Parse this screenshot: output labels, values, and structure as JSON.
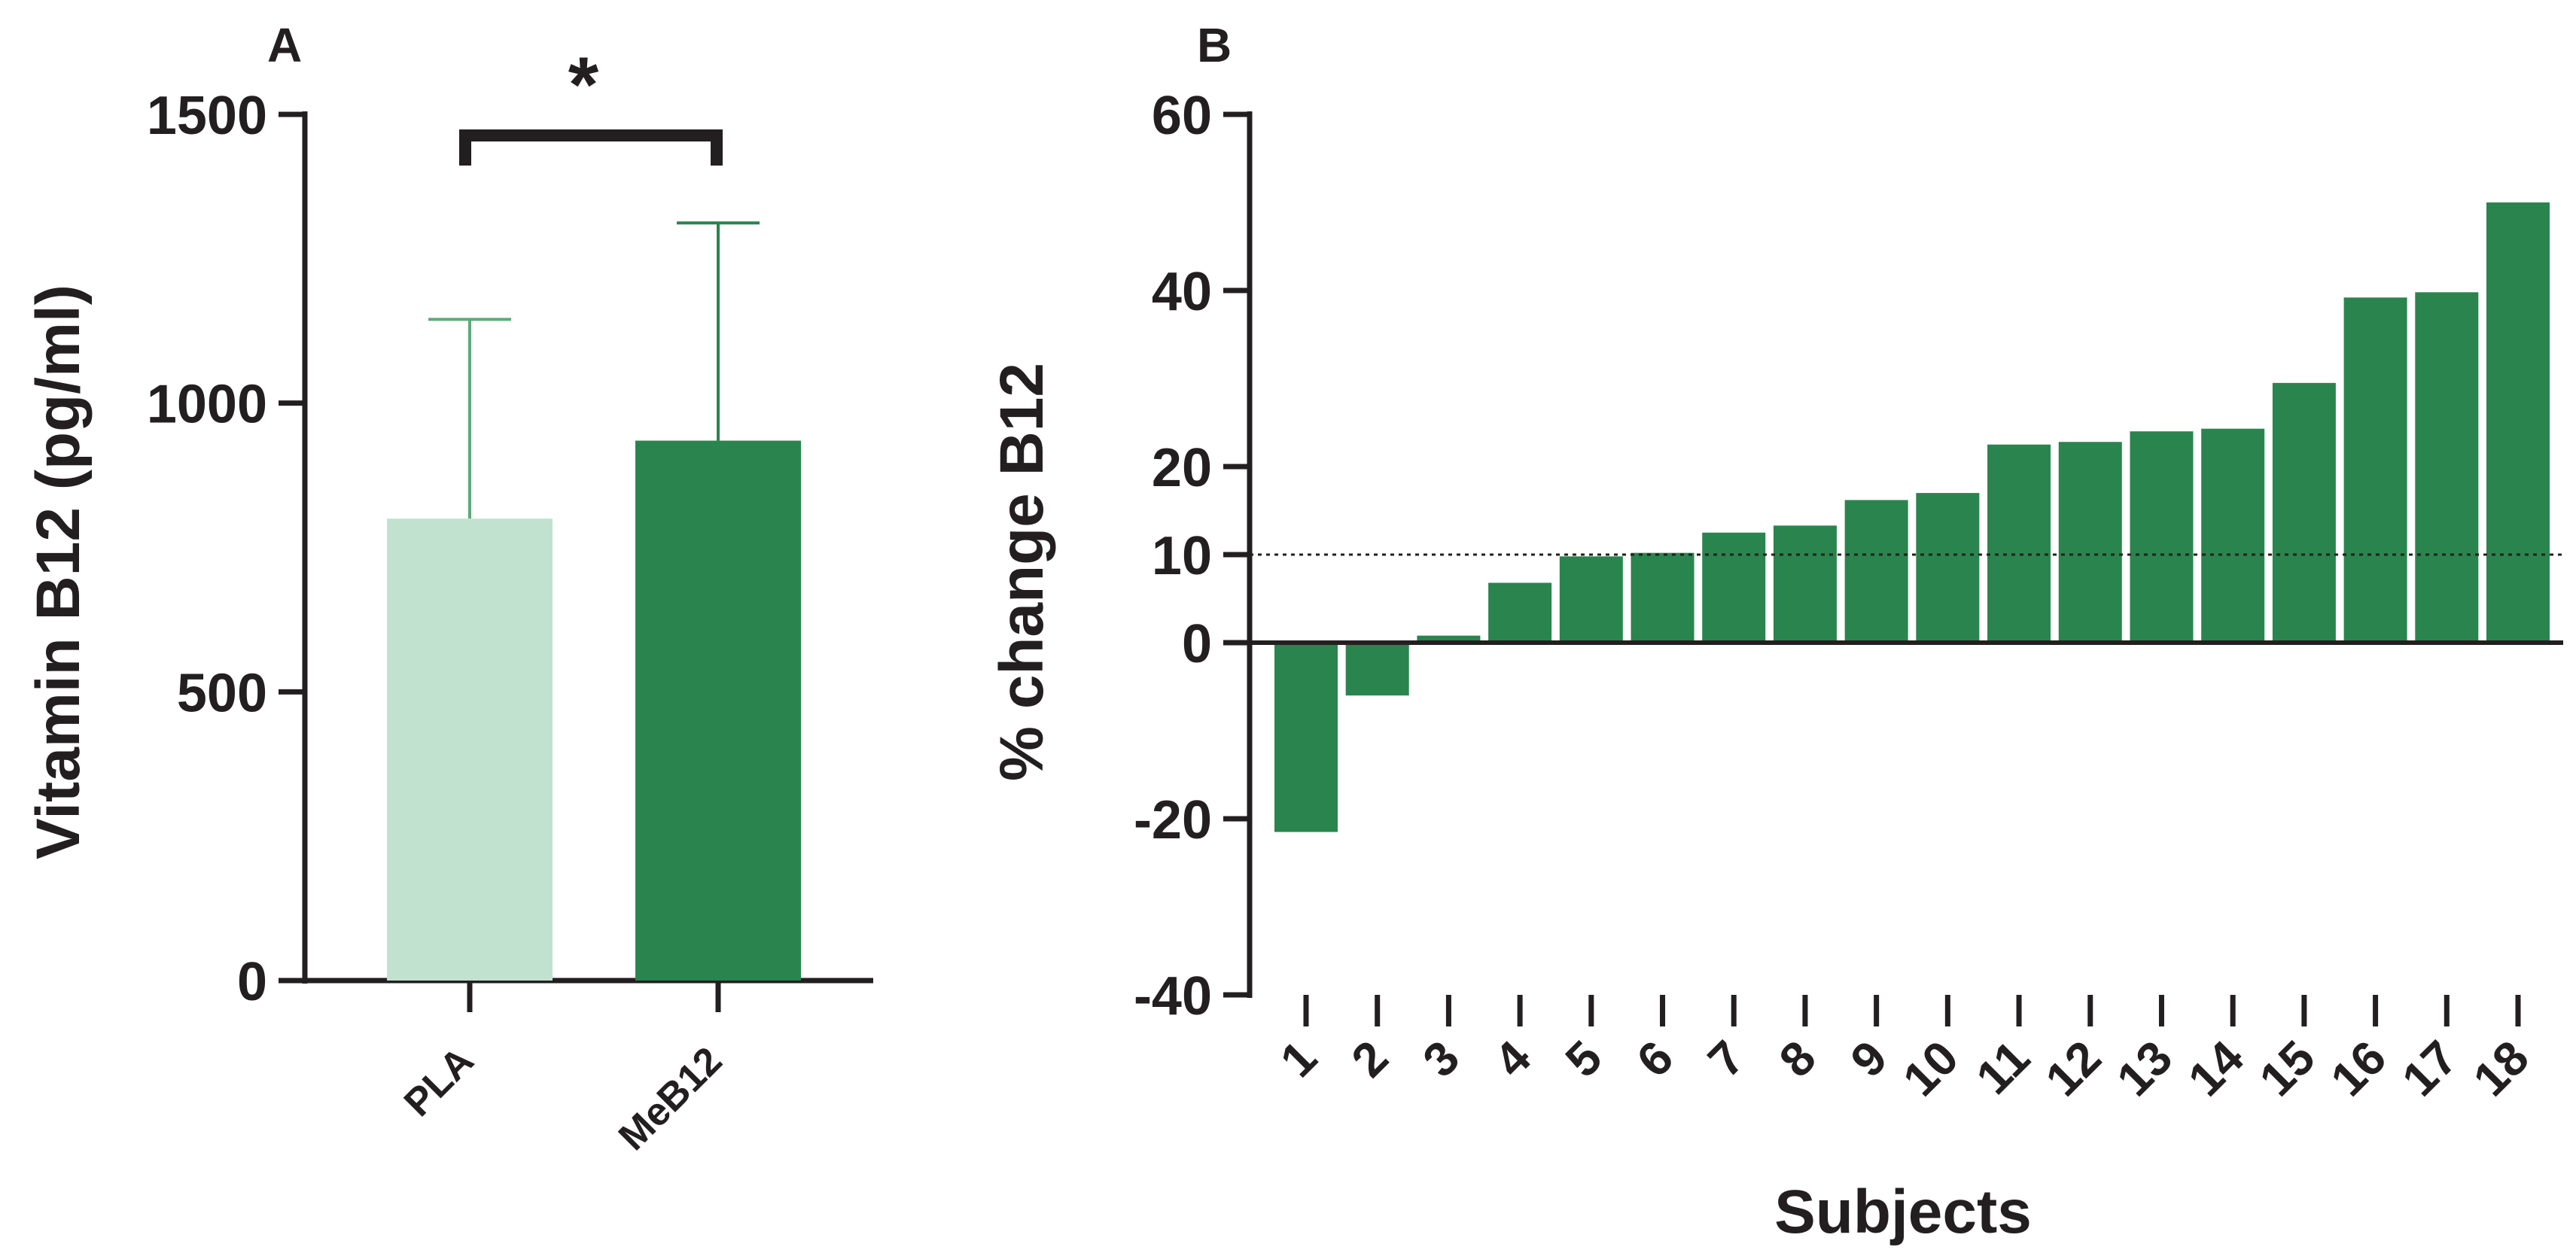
{
  "colors": {
    "axis": "#231f20",
    "pla_bar": "#c2e2d0",
    "meb12_bar": "#2a844e",
    "error_bar_pla": "#5aab7a",
    "error_bar_meb12": "#2a844e",
    "subject_bar": "#2a844e",
    "reference_line": "#231f20"
  },
  "chart_data": [
    {
      "panel": "A",
      "type": "bar",
      "categories": [
        "PLA",
        "MeB12"
      ],
      "values": [
        800,
        935
      ],
      "error_upper": [
        1145,
        1312
      ],
      "ylabel": "Vitamin B12 (pg/ml)",
      "ylim": [
        0,
        1500
      ],
      "yticks": [
        "0",
        "500",
        "1000",
        "1500"
      ],
      "significance": "*",
      "grid": false
    },
    {
      "panel": "B",
      "type": "bar",
      "categories": [
        "1",
        "2",
        "3",
        "4",
        "5",
        "6",
        "7",
        "8",
        "9",
        "10",
        "11",
        "12",
        "13",
        "14",
        "15",
        "16",
        "17",
        "18"
      ],
      "values": [
        -21.5,
        -6,
        0.8,
        6.8,
        9.8,
        10.2,
        12.5,
        13.3,
        16.2,
        17,
        22.5,
        22.8,
        24,
        24.3,
        29.5,
        39.2,
        39.8,
        50
      ],
      "xlabel": "Subjects",
      "ylabel": "% change B12",
      "ylim": [
        -40,
        60
      ],
      "yticks": [
        "-40",
        "-20",
        "0",
        "10",
        "20",
        "40",
        "60"
      ],
      "reference_line": 10,
      "grid": false
    }
  ]
}
